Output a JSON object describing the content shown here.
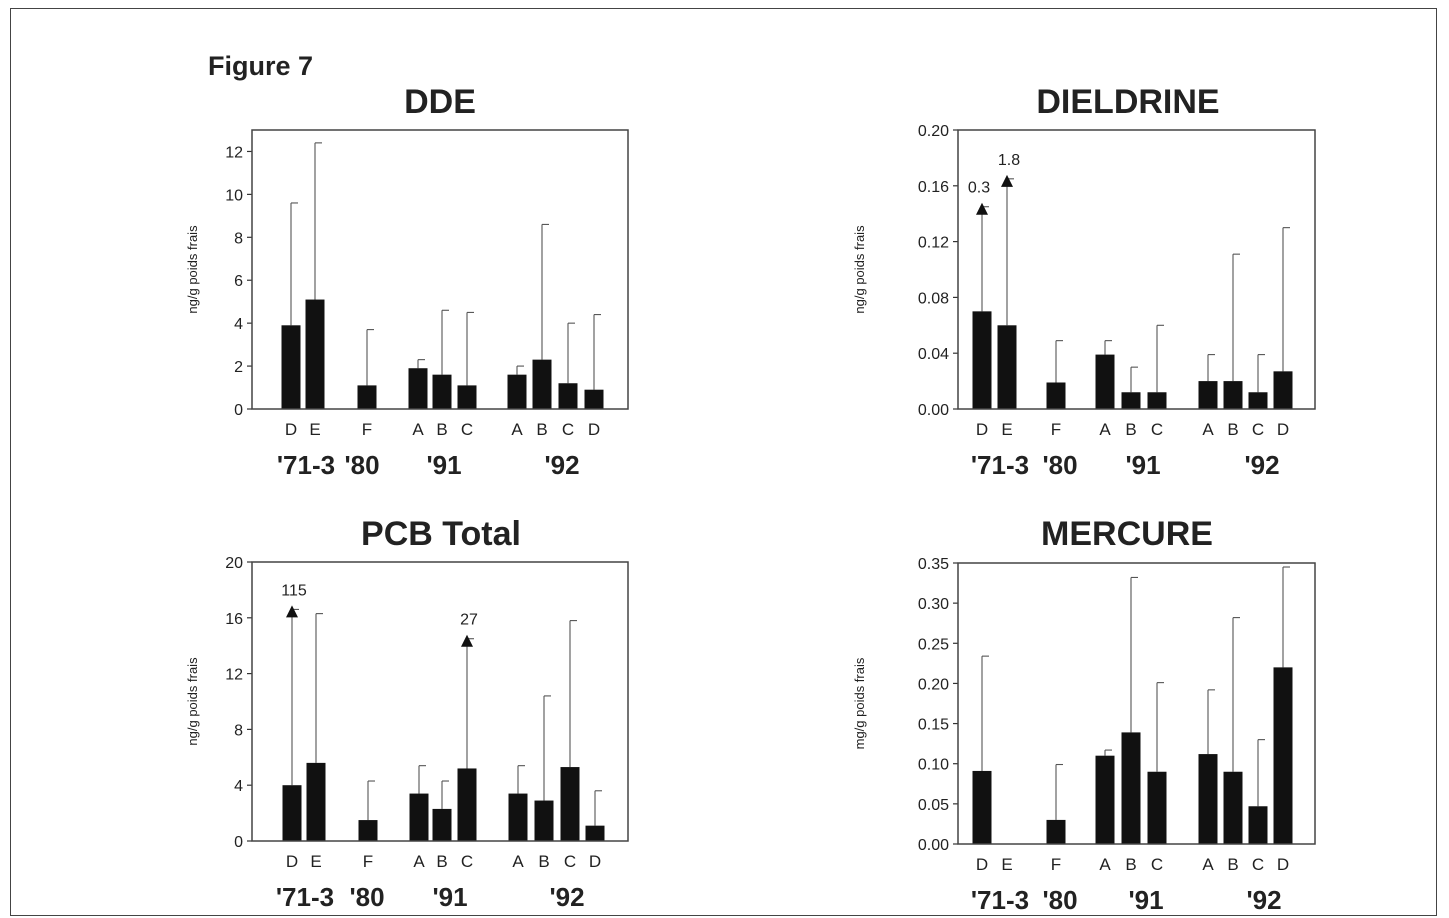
{
  "figure_label": "Figure 7",
  "group_labels": [
    "'71-3",
    "'80",
    "'91",
    "'92"
  ],
  "chart_data": [
    {
      "id": "dde",
      "type": "bar",
      "title": "DDE",
      "ylabel": "ng/g poids frais",
      "ylim": [
        0,
        13
      ],
      "yticks": [
        "0",
        "2",
        "4",
        "6",
        "8",
        "10",
        "12"
      ],
      "categories": [
        "D",
        "E",
        "F",
        "A",
        "B",
        "C",
        "A",
        "B",
        "C",
        "D"
      ],
      "groups": [
        "'71-3",
        "'71-3",
        "'80",
        "'91",
        "'91",
        "'91",
        "'92",
        "'92",
        "'92",
        "'92"
      ],
      "values": [
        3.9,
        5.1,
        1.1,
        1.9,
        1.6,
        1.1,
        1.6,
        2.3,
        1.2,
        0.9
      ],
      "error_upper": [
        9.6,
        12.4,
        3.7,
        2.3,
        4.6,
        4.5,
        2.0,
        8.6,
        4.0,
        4.4
      ],
      "offscale": []
    },
    {
      "id": "dieldrine",
      "type": "bar",
      "title": "DIELDRINE",
      "ylabel": "ng/g poids frais",
      "ylim": [
        0,
        0.2
      ],
      "yticks": [
        "0.00",
        "0.04",
        "0.08",
        "0.12",
        "0.16",
        "0.20"
      ],
      "categories": [
        "D",
        "E",
        "F",
        "A",
        "B",
        "C",
        "A",
        "B",
        "C",
        "D"
      ],
      "groups": [
        "'71-3",
        "'71-3",
        "'80",
        "'91",
        "'91",
        "'91",
        "'92",
        "'92",
        "'92",
        "'92"
      ],
      "values": [
        0.07,
        0.06,
        0.019,
        0.039,
        0.012,
        0.012,
        0.02,
        0.02,
        0.012,
        0.027
      ],
      "error_upper": [
        0.145,
        0.165,
        0.049,
        0.049,
        0.03,
        0.06,
        0.039,
        0.111,
        0.039,
        0.13
      ],
      "offscale": [
        {
          "index": 0,
          "label": "0.3"
        },
        {
          "index": 1,
          "label": "1.8"
        }
      ]
    },
    {
      "id": "pcb",
      "type": "bar",
      "title": "PCB Total",
      "ylabel": "ng/g poids frais",
      "ylim": [
        0,
        20
      ],
      "yticks": [
        "0",
        "4",
        "8",
        "12",
        "16",
        "20"
      ],
      "categories": [
        "D",
        "E",
        "F",
        "A",
        "B",
        "C",
        "A",
        "B",
        "C",
        "D"
      ],
      "groups": [
        "'71-3",
        "'71-3",
        "'80",
        "'91",
        "'91",
        "'91",
        "'92",
        "'92",
        "'92",
        "'92"
      ],
      "values": [
        4.0,
        5.6,
        1.5,
        3.4,
        2.3,
        5.2,
        3.4,
        2.9,
        5.3,
        1.1
      ],
      "error_upper": [
        16.6,
        16.3,
        4.3,
        5.4,
        4.3,
        14.5,
        5.4,
        10.4,
        15.8,
        3.6
      ],
      "offscale": [
        {
          "index": 0,
          "label": "115"
        },
        {
          "index": 5,
          "label": "27"
        }
      ]
    },
    {
      "id": "mercure",
      "type": "bar",
      "title": "MERCURE",
      "ylabel": "mg/g poids frais",
      "ylim": [
        0,
        0.35
      ],
      "yticks": [
        "0.00",
        "0.05",
        "0.10",
        "0.15",
        "0.20",
        "0.25",
        "0.30",
        "0.35"
      ],
      "categories": [
        "D",
        "E",
        "F",
        "A",
        "B",
        "C",
        "A",
        "B",
        "C",
        "D"
      ],
      "groups": [
        "'71-3",
        "'71-3",
        "'80",
        "'91",
        "'91",
        "'91",
        "'92",
        "'92",
        "'92",
        "'92"
      ],
      "values": [
        0.091,
        null,
        0.03,
        0.11,
        0.139,
        0.09,
        0.112,
        0.09,
        0.047,
        0.22
      ],
      "error_upper": [
        0.234,
        null,
        0.099,
        0.117,
        0.332,
        0.201,
        0.192,
        0.282,
        0.13,
        0.345
      ],
      "offscale": []
    }
  ]
}
